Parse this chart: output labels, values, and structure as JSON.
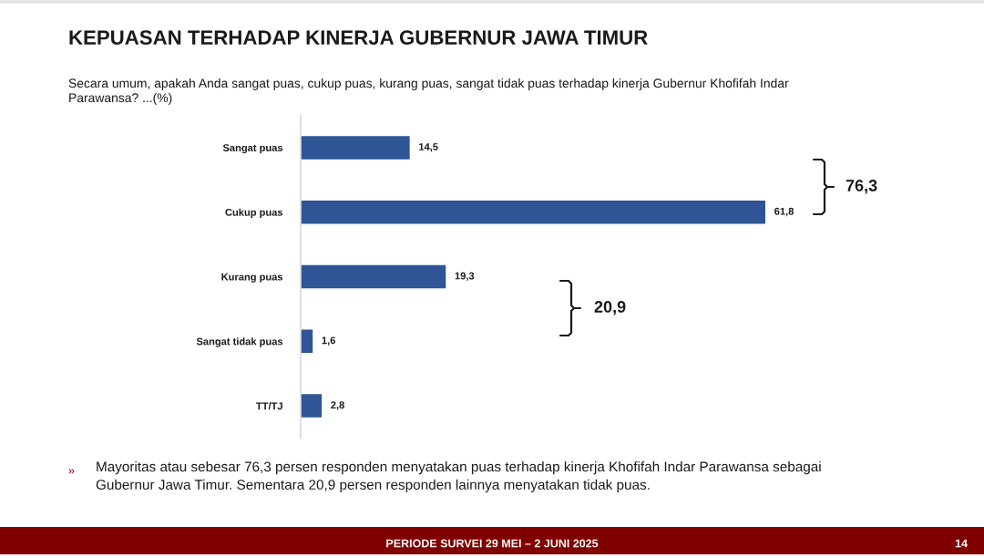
{
  "chart_data": {
    "type": "bar",
    "orientation": "horizontal",
    "title": "KEPUASAN TERHADAP KINERJA GUBERNUR JAWA TIMUR",
    "subtitle": "Secara umum, apakah Anda sangat puas, cukup puas, kurang puas, sangat tidak puas terhadap kinerja Gubernur Khofifah Indar\nParawansa? ...(%)",
    "categories": [
      "Sangat puas",
      "Cukup puas",
      "Kurang puas",
      "Sangat tidak puas",
      "TT/TJ"
    ],
    "values": [
      14.5,
      61.8,
      19.3,
      1.6,
      2.8
    ],
    "value_labels": [
      "14,5",
      "61,8",
      "19,3",
      "1,6",
      "2,8"
    ],
    "color": "#2f5597",
    "tick_labels": "y",
    "annotations": [
      "76,3",
      "20,9",
      "»",
      "Mayoritas atau sebesar 76,3 persen responden menyatakan puas terhadap kinerja Khofifah Indar Parawansa sebagai\nGubernur Jawa Timur. Sementara 20,9 persen responden lainnya menyatakan tidak puas.",
      "PERIODE SURVEI 29 MEI – 2 JUNI 2025",
      "14"
    ]
  }
}
